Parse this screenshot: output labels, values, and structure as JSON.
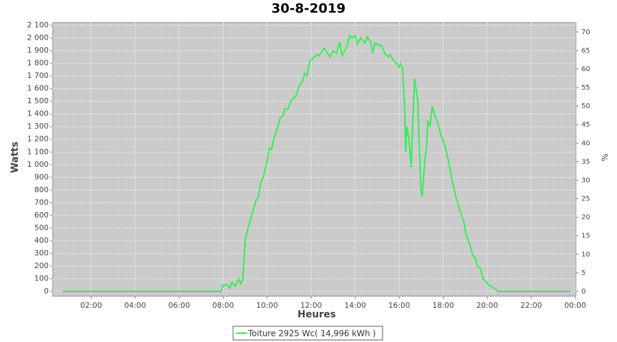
{
  "chart_data": {
    "type": "line",
    "title": "30-8-2019",
    "x_label": "Heures",
    "y_label": "Watts",
    "y2_label": "%",
    "x": [
      0.7,
      7.5,
      7.9,
      8.0,
      8.2,
      8.3,
      8.4,
      8.55,
      8.7,
      8.8,
      8.9,
      9.0,
      9.1,
      9.3,
      9.5,
      9.6,
      9.7,
      9.85,
      10.0,
      10.1,
      10.2,
      10.3,
      10.45,
      10.6,
      10.7,
      10.8,
      10.95,
      11.1,
      11.3,
      11.5,
      11.6,
      11.7,
      11.8,
      11.95,
      12.1,
      12.25,
      12.35,
      12.6,
      12.75,
      12.85,
      13.0,
      13.15,
      13.3,
      13.4,
      13.6,
      13.75,
      13.85,
      14.0,
      14.1,
      14.25,
      14.45,
      14.55,
      14.7,
      14.8,
      14.9,
      15.0,
      15.2,
      15.35,
      15.5,
      15.6,
      15.75,
      15.9,
      16.0,
      16.05,
      16.15,
      16.25,
      16.3,
      16.35,
      16.45,
      16.55,
      16.6,
      16.7,
      16.8,
      16.85,
      16.9,
      17.0,
      17.05,
      17.15,
      17.25,
      17.3,
      17.4,
      17.5,
      17.6,
      17.75,
      17.9,
      18.0,
      18.15,
      18.3,
      18.45,
      18.6,
      18.8,
      18.95,
      19.05,
      19.2,
      19.35,
      19.45,
      19.55,
      19.7,
      19.8,
      19.95,
      20.05,
      20.2,
      20.35,
      20.5,
      23.8
    ],
    "series": [
      {
        "name": "Toiture 2925 Wc( 14,996 kWh )",
        "color": "#33ee55",
        "values": [
          0,
          0,
          0,
          50,
          50,
          25,
          70,
          40,
          100,
          60,
          100,
          400,
          480,
          600,
          720,
          740,
          850,
          920,
          1030,
          1130,
          1120,
          1200,
          1280,
          1370,
          1380,
          1440,
          1440,
          1510,
          1540,
          1640,
          1650,
          1720,
          1700,
          1820,
          1840,
          1870,
          1860,
          1920,
          1880,
          1850,
          1900,
          1880,
          1970,
          1860,
          1920,
          2020,
          2000,
          2020,
          1950,
          2000,
          1960,
          2010,
          1970,
          1880,
          1960,
          1950,
          1940,
          1880,
          1850,
          1870,
          1820,
          1800,
          1770,
          1800,
          1760,
          1450,
          1100,
          1300,
          1200,
          980,
          1250,
          1680,
          1560,
          1500,
          1200,
          780,
          750,
          1000,
          1150,
          1350,
          1300,
          1460,
          1400,
          1330,
          1230,
          1190,
          1100,
          980,
          840,
          730,
          620,
          540,
          440,
          380,
          280,
          270,
          200,
          180,
          100,
          80,
          50,
          40,
          20,
          0,
          0
        ]
      }
    ],
    "xlim": [
      0.26,
      24.03
    ],
    "xticks": [
      {
        "value": 2,
        "label": "02:00"
      },
      {
        "value": 4,
        "label": "04:00"
      },
      {
        "value": 6,
        "label": "06:00"
      },
      {
        "value": 8,
        "label": "08:00"
      },
      {
        "value": 10,
        "label": "10:00"
      },
      {
        "value": 12,
        "label": "12:00"
      },
      {
        "value": 14,
        "label": "14:00"
      },
      {
        "value": 16,
        "label": "16:00"
      },
      {
        "value": 18,
        "label": "18:00"
      },
      {
        "value": 20,
        "label": "20:00"
      },
      {
        "value": 22,
        "label": "22:00"
      },
      {
        "value": 24,
        "label": "00:00"
      }
    ],
    "ylim": [
      -38,
      2122
    ],
    "yticks": [
      0,
      100,
      200,
      300,
      400,
      500,
      600,
      700,
      800,
      900,
      {
        "value": 1000,
        "label": "1 000"
      },
      {
        "value": 1100,
        "label": "1 100"
      },
      {
        "value": 1200,
        "label": "1 200"
      },
      {
        "value": 1300,
        "label": "1 300"
      },
      {
        "value": 1400,
        "label": "1 400"
      },
      {
        "value": 1500,
        "label": "1 500"
      },
      {
        "value": 1600,
        "label": "1 600"
      },
      {
        "value": 1700,
        "label": "1 700"
      },
      {
        "value": 1800,
        "label": "1 800"
      },
      {
        "value": 1900,
        "label": "1 900"
      },
      {
        "value": 2000,
        "label": "2 000"
      },
      {
        "value": 2100,
        "label": "2 100"
      }
    ],
    "y2lim": [
      -1.3,
      72.55
    ],
    "y2ticks": [
      0,
      5,
      10,
      15,
      20,
      25,
      30,
      35,
      40,
      45,
      50,
      55,
      60,
      65,
      70
    ],
    "grid": true,
    "plot_background": "#cbcbcb",
    "legend": "bottom"
  }
}
